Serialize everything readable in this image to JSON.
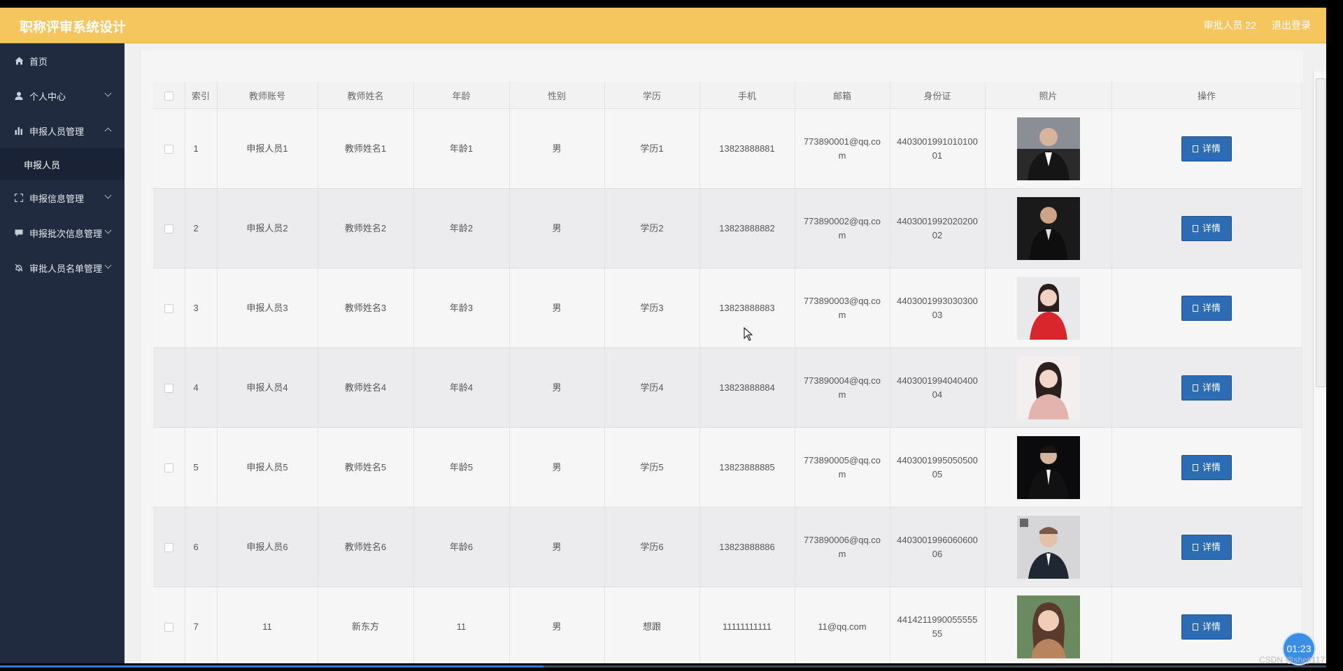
{
  "header": {
    "title": "职称评审系统设计",
    "user_label": "审批人员 22",
    "logout_label": "退出登录"
  },
  "sidebar": {
    "items": [
      {
        "label": "首页",
        "icon": "home-icon",
        "has_caret": false
      },
      {
        "label": "个人中心",
        "icon": "user-icon",
        "has_caret": true
      },
      {
        "label": "申报人员管理",
        "icon": "bar-chart-icon",
        "has_caret": true,
        "expanded": true
      },
      {
        "label": "申报信息管理",
        "icon": "frame-icon",
        "has_caret": true
      },
      {
        "label": "申报批次信息管理",
        "icon": "message-icon",
        "has_caret": true
      },
      {
        "label": "审批人员名单管理",
        "icon": "bell-icon",
        "has_caret": true
      }
    ],
    "submenu": {
      "label": "申报人员"
    }
  },
  "table": {
    "columns": [
      "索引",
      "教师账号",
      "教师姓名",
      "年龄",
      "性别",
      "学历",
      "手机",
      "邮箱",
      "身份证",
      "照片",
      "操作"
    ],
    "detail_label": "详情",
    "rows": [
      {
        "index": "1",
        "account": "申报人员1",
        "name": "教师姓名1",
        "age": "年龄1",
        "gender": "男",
        "education": "学历1",
        "phone": "13823888881",
        "email": "773890001@qq.com",
        "id_card": "440300199101010001",
        "photo": "photo-man-suit"
      },
      {
        "index": "2",
        "account": "申报人员2",
        "name": "教师姓名2",
        "age": "年龄2",
        "gender": "男",
        "education": "学历2",
        "phone": "13823888882",
        "email": "773890002@qq.com",
        "id_card": "440300199202020002",
        "photo": "photo-man-dark"
      },
      {
        "index": "3",
        "account": "申报人员3",
        "name": "教师姓名3",
        "age": "年龄3",
        "gender": "男",
        "education": "学历3",
        "phone": "13823888883",
        "email": "773890003@qq.com",
        "id_card": "440300199303030003",
        "photo": "photo-woman-red"
      },
      {
        "index": "4",
        "account": "申报人员4",
        "name": "教师姓名4",
        "age": "年龄4",
        "gender": "男",
        "education": "学历4",
        "phone": "13823888884",
        "email": "773890004@qq.com",
        "id_card": "440300199404040004",
        "photo": "photo-woman-pink"
      },
      {
        "index": "5",
        "account": "申报人员5",
        "name": "教师姓名5",
        "age": "年龄5",
        "gender": "男",
        "education": "学历5",
        "phone": "13823888885",
        "email": "773890005@qq.com",
        "id_card": "440300199505050005",
        "photo": "photo-man-tux"
      },
      {
        "index": "6",
        "account": "申报人员6",
        "name": "教师姓名6",
        "age": "年龄6",
        "gender": "男",
        "education": "学历6",
        "phone": "13823888886",
        "email": "773890006@qq.com",
        "id_card": "440300199606060006",
        "photo": "photo-man-light"
      },
      {
        "index": "7",
        "account": "11",
        "name": "新东方",
        "age": "11",
        "gender": "男",
        "education": "想跟",
        "phone": "11111111111",
        "email": "11@qq.com",
        "id_card": "441421199005555555",
        "photo": "photo-woman-smile"
      }
    ]
  },
  "overlay": {
    "timer": "01:23",
    "watermark": "CSDN @shejt117",
    "progress": 0.41
  },
  "colors": {
    "header_bg": "#f5c55e",
    "sidebar_bg": "#202b40",
    "button_bg": "#2b6cb5"
  }
}
